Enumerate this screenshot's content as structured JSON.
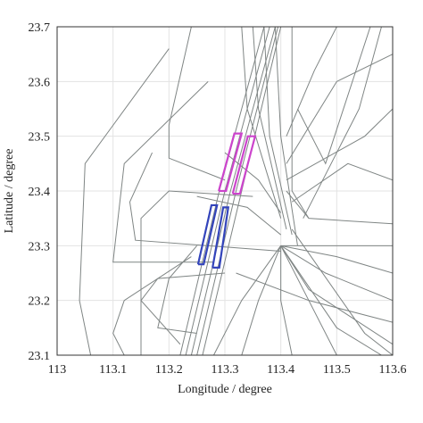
{
  "chart_data": {
    "type": "line",
    "xlabel": "Longitude / degree",
    "ylabel": "Latitude / degree",
    "xlim": [
      113,
      113.6
    ],
    "ylim": [
      23.1,
      23.7
    ],
    "xticks": [
      113,
      113.1,
      113.2,
      113.3,
      113.4,
      113.5,
      113.6
    ],
    "yticks": [
      23.1,
      23.2,
      23.3,
      23.4,
      23.5,
      23.6,
      23.7
    ],
    "grid": true,
    "series": [
      {
        "color": "#7f8584",
        "x": [
          113.23,
          113.3,
          113.38
        ],
        "y": [
          23.1,
          23.4,
          23.7
        ]
      },
      {
        "color": "#7f8584",
        "x": [
          113.24,
          113.31,
          113.39
        ],
        "y": [
          23.1,
          23.4,
          23.7
        ]
      },
      {
        "color": "#7f8584",
        "x": [
          113.25,
          113.32,
          113.395
        ],
        "y": [
          23.1,
          23.4,
          23.7
        ]
      },
      {
        "color": "#7f8584",
        "x": [
          113.22,
          113.29,
          113.37
        ],
        "y": [
          23.1,
          23.4,
          23.7
        ]
      },
      {
        "color": "#7f8584",
        "x": [
          113.26,
          113.33,
          113.4
        ],
        "y": [
          23.1,
          23.4,
          23.7
        ]
      },
      {
        "color": "#7f8584",
        "x": [
          113.33,
          113.34,
          113.4
        ],
        "y": [
          23.7,
          23.55,
          23.35
        ]
      },
      {
        "color": "#7f8584",
        "x": [
          113.35,
          113.36,
          113.41
        ],
        "y": [
          23.7,
          23.55,
          23.33
        ]
      },
      {
        "color": "#7f8584",
        "x": [
          113.37,
          113.38,
          113.42
        ],
        "y": [
          23.7,
          23.5,
          23.32
        ]
      },
      {
        "color": "#7f8584",
        "x": [
          113.39,
          113.4,
          113.43
        ],
        "y": [
          23.7,
          23.5,
          23.3
        ]
      },
      {
        "color": "#7f8584",
        "x": [
          113.2,
          113.05,
          113.04,
          113.06
        ],
        "y": [
          23.66,
          23.45,
          23.2,
          23.1
        ]
      },
      {
        "color": "#7f8584",
        "x": [
          113.27,
          113.12,
          113.1,
          113.28
        ],
        "y": [
          23.6,
          23.45,
          23.27,
          23.27
        ]
      },
      {
        "color": "#7f8584",
        "x": [
          113.24,
          113.2,
          113.2,
          113.3
        ],
        "y": [
          23.7,
          23.52,
          23.46,
          23.42
        ]
      },
      {
        "color": "#7f8584",
        "x": [
          113.17,
          113.13,
          113.14,
          113.4
        ],
        "y": [
          23.47,
          23.38,
          23.31,
          23.29
        ]
      },
      {
        "color": "#7f8584",
        "x": [
          113.24,
          113.12,
          113.1,
          113.12
        ],
        "y": [
          23.28,
          23.2,
          23.14,
          23.1
        ]
      },
      {
        "color": "#7f8584",
        "x": [
          113.35,
          113.2,
          113.15,
          113.15
        ],
        "y": [
          23.39,
          23.4,
          23.35,
          23.1
        ]
      },
      {
        "color": "#7f8584",
        "x": [
          113.3,
          113.18,
          113.15,
          113.22
        ],
        "y": [
          23.25,
          23.24,
          23.2,
          23.12
        ]
      },
      {
        "color": "#7f8584",
        "x": [
          113.25,
          113.2,
          113.18,
          113.25
        ],
        "y": [
          23.3,
          23.24,
          23.15,
          23.14
        ]
      },
      {
        "color": "#7f8584",
        "x": [
          113.4,
          113.45,
          113.6
        ],
        "y": [
          23.3,
          23.22,
          23.12
        ]
      },
      {
        "color": "#7f8584",
        "x": [
          113.4,
          113.48,
          113.6
        ],
        "y": [
          23.3,
          23.25,
          23.2
        ]
      },
      {
        "color": "#7f8584",
        "x": [
          113.4,
          113.5,
          113.6
        ],
        "y": [
          23.3,
          23.28,
          23.25
        ]
      },
      {
        "color": "#7f8584",
        "x": [
          113.4,
          113.5,
          113.6
        ],
        "y": [
          23.3,
          23.3,
          23.3
        ]
      },
      {
        "color": "#7f8584",
        "x": [
          113.4,
          113.45,
          113.5
        ],
        "y": [
          23.3,
          23.2,
          23.1
        ]
      },
      {
        "color": "#7f8584",
        "x": [
          113.4,
          113.4,
          113.42
        ],
        "y": [
          23.3,
          23.2,
          23.1
        ]
      },
      {
        "color": "#7f8584",
        "x": [
          113.4,
          113.36,
          113.33
        ],
        "y": [
          23.3,
          23.2,
          23.1
        ]
      },
      {
        "color": "#7f8584",
        "x": [
          113.4,
          113.33,
          113.28
        ],
        "y": [
          23.3,
          23.2,
          23.1
        ]
      },
      {
        "color": "#7f8584",
        "x": [
          113.4,
          113.5,
          113.58
        ],
        "y": [
          23.3,
          23.15,
          23.1
        ]
      },
      {
        "color": "#7f8584",
        "x": [
          113.42,
          113.55,
          113.6
        ],
        "y": [
          23.33,
          23.14,
          23.1
        ]
      },
      {
        "color": "#7f8584",
        "x": [
          113.32,
          113.45,
          113.6
        ],
        "y": [
          23.25,
          23.2,
          23.16
        ]
      },
      {
        "color": "#7f8584",
        "x": [
          113.41,
          113.45,
          113.6
        ],
        "y": [
          23.4,
          23.35,
          23.34
        ]
      },
      {
        "color": "#7f8584",
        "x": [
          113.41,
          113.5,
          113.6
        ],
        "y": [
          23.45,
          23.6,
          23.65
        ]
      },
      {
        "color": "#7f8584",
        "x": [
          113.41,
          113.46,
          113.5
        ],
        "y": [
          23.5,
          23.62,
          23.7
        ]
      },
      {
        "color": "#7f8584",
        "x": [
          113.41,
          113.55,
          113.6
        ],
        "y": [
          23.42,
          23.5,
          23.55
        ]
      },
      {
        "color": "#7f8584",
        "x": [
          113.42,
          113.52,
          113.6
        ],
        "y": [
          23.38,
          23.45,
          23.42
        ]
      },
      {
        "color": "#7f8584",
        "x": [
          113.44,
          113.54,
          113.58
        ],
        "y": [
          23.35,
          23.55,
          23.7
        ]
      },
      {
        "color": "#7f8584",
        "x": [
          113.43,
          113.48,
          113.56
        ],
        "y": [
          23.55,
          23.45,
          23.7
        ]
      },
      {
        "color": "#7f8584",
        "x": [
          113.42,
          113.42,
          113.45
        ],
        "y": [
          23.7,
          23.4,
          23.35
        ]
      },
      {
        "color": "#7f8584",
        "x": [
          113.3,
          113.36,
          113.4
        ],
        "y": [
          23.47,
          23.42,
          23.36
        ]
      },
      {
        "color": "#7f8584",
        "x": [
          113.25,
          113.34,
          113.4
        ],
        "y": [
          23.39,
          23.37,
          23.32
        ]
      }
    ],
    "regions": [
      {
        "color": "#cc44cc",
        "x": [
          113.289,
          113.317,
          113.33,
          113.302,
          113.289
        ],
        "y": [
          23.4,
          23.505,
          23.505,
          23.4,
          23.4
        ]
      },
      {
        "color": "#cc44cc",
        "x": [
          113.314,
          113.341,
          113.354,
          113.327,
          113.314
        ],
        "y": [
          23.395,
          23.5,
          23.5,
          23.395,
          23.395
        ]
      },
      {
        "color": "#3344bb",
        "x": [
          113.252,
          113.276,
          113.286,
          113.262,
          113.252
        ],
        "y": [
          23.266,
          23.374,
          23.374,
          23.266,
          23.266
        ]
      },
      {
        "color": "#3344bb",
        "x": [
          113.278,
          113.297,
          113.306,
          113.29,
          113.278
        ],
        "y": [
          23.26,
          23.37,
          23.37,
          23.26,
          23.26
        ]
      }
    ]
  }
}
